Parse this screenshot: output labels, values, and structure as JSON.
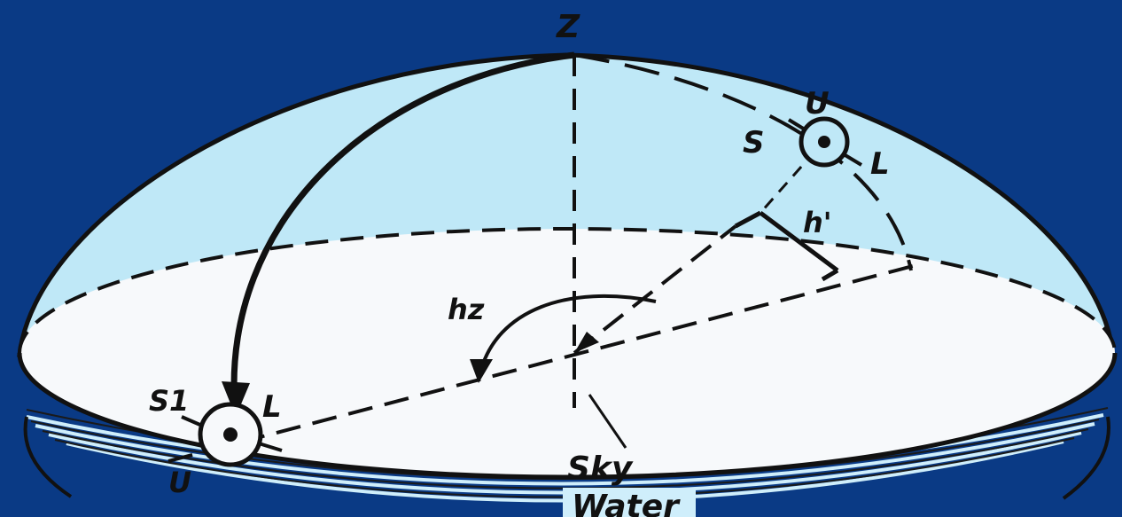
{
  "colors": {
    "background": "#0a3a85",
    "dome": "#bfe8f7",
    "horizon_plane": "#f7f9fb",
    "water_bands": "#cfeefb",
    "ink": "#111111"
  },
  "labels": {
    "zenith": "Z",
    "upper_U": "U",
    "upper_S": "S",
    "upper_L": "L",
    "h_prime": "h'",
    "hz": "hz",
    "lower_S1": "S1",
    "lower_L": "L",
    "lower_U": "U",
    "sky": "Sky",
    "water": "Water"
  }
}
